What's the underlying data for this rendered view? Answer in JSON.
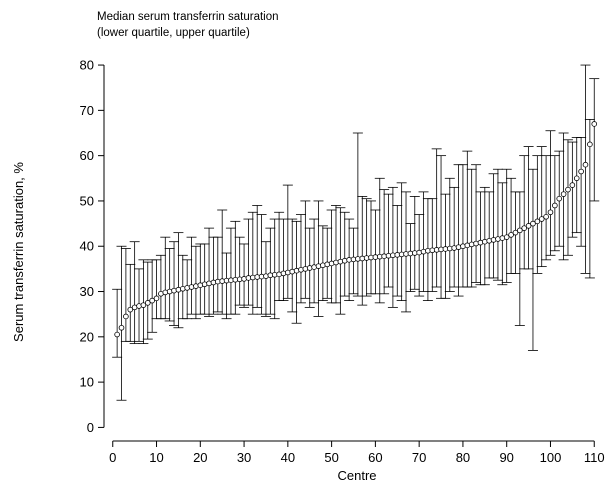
{
  "chart_data": {
    "type": "scatter",
    "subtitle_lines": [
      "Median serum transferrin saturation",
      "(lower quartile, upper quartile)"
    ],
    "xlabel": "Centre",
    "ylabel": "Serum transferrin saturation, %",
    "xlim": [
      -2,
      112
    ],
    "ylim": [
      -3,
      82
    ],
    "xticks": [
      0,
      10,
      20,
      30,
      40,
      50,
      60,
      70,
      80,
      90,
      100,
      110
    ],
    "yticks": [
      0,
      10,
      20,
      30,
      40,
      50,
      60,
      70,
      80
    ],
    "grid": false,
    "marker": "hollow-circle",
    "series": [
      {
        "x": [
          1,
          2,
          3,
          4,
          5,
          6,
          7,
          8,
          9,
          10,
          11,
          12,
          13,
          14,
          15,
          16,
          17,
          18,
          19,
          20,
          21,
          22,
          23,
          24,
          25,
          26,
          27,
          28,
          29,
          30,
          31,
          32,
          33,
          34,
          35,
          36,
          37,
          38,
          39,
          40,
          41,
          42,
          43,
          44,
          45,
          46,
          47,
          48,
          49,
          50,
          51,
          52,
          53,
          54,
          55,
          56,
          57,
          58,
          59,
          60,
          61,
          62,
          63,
          64,
          65,
          66,
          67,
          68,
          69,
          70,
          71,
          72,
          73,
          74,
          75,
          76,
          77,
          78,
          79,
          80,
          81,
          82,
          83,
          84,
          85,
          86,
          87,
          88,
          89,
          90,
          91,
          92,
          93,
          94,
          95,
          96,
          97,
          98,
          99,
          100,
          101,
          102,
          103,
          104,
          105,
          106,
          107,
          108,
          109,
          110
        ],
        "median": [
          20.5,
          22,
          24.5,
          26,
          26.5,
          26.8,
          27,
          27.5,
          28,
          28.5,
          29.5,
          29.8,
          30,
          30.2,
          30.4,
          30.6,
          30.8,
          31,
          31.2,
          31.4,
          31.6,
          31.8,
          32,
          32.2,
          32.3,
          32.4,
          32.5,
          32.6,
          32.7,
          32.8,
          33,
          33.1,
          33.2,
          33.3,
          33.4,
          33.6,
          33.7,
          33.8,
          34,
          34.2,
          34.4,
          34.6,
          34.8,
          35,
          35.2,
          35.4,
          35.6,
          35.8,
          36,
          36.2,
          36.4,
          36.6,
          36.8,
          37,
          37.1,
          37.2,
          37.3,
          37.4,
          37.5,
          37.6,
          37.7,
          37.8,
          37.9,
          38,
          38.1,
          38.2,
          38.3,
          38.4,
          38.5,
          38.6,
          38.8,
          39,
          39.1,
          39.2,
          39.3,
          39.4,
          39.5,
          39.6,
          39.8,
          40,
          40.2,
          40.4,
          40.6,
          40.8,
          41,
          41.2,
          41.4,
          41.6,
          41.8,
          42,
          42.5,
          43,
          43.5,
          44,
          44.5,
          45,
          45.5,
          46,
          46.5,
          47.5,
          49,
          50.5,
          51.5,
          52.5,
          53.5,
          55,
          56.5,
          58,
          62.5,
          67
        ],
        "lower_quartile": [
          15.5,
          6,
          19,
          19,
          18.5,
          19,
          18.5,
          19.5,
          21,
          24,
          24,
          24,
          23.5,
          22.5,
          22,
          24,
          24,
          25,
          24,
          25,
          25,
          24.5,
          25,
          25.5,
          25,
          24,
          25,
          25,
          27,
          26.5,
          27,
          25,
          26.5,
          25,
          24.5,
          25,
          24,
          28,
          28,
          28.5,
          25.5,
          23,
          27.5,
          28.5,
          26.5,
          27.5,
          24.5,
          28,
          28.5,
          27.5,
          27.5,
          25,
          29,
          28,
          29.5,
          29,
          27,
          29,
          29.5,
          29.5,
          27.5,
          29.5,
          31,
          26.5,
          29,
          28,
          25.5,
          30,
          30.5,
          29,
          30,
          28,
          30,
          31,
          28.5,
          28.5,
          30,
          31,
          29,
          31,
          31,
          31,
          32,
          31.5,
          31.5,
          33,
          33,
          32.5,
          31.5,
          32,
          34,
          34,
          22.5,
          35,
          35,
          17,
          34,
          35.5,
          37,
          38,
          39,
          40,
          37,
          38,
          42,
          43,
          40,
          34,
          33,
          50
        ],
        "upper_quartile": [
          30.5,
          40,
          39.5,
          36,
          41,
          35,
          37,
          36.5,
          37,
          37,
          38,
          42,
          39.5,
          41,
          43,
          38,
          37,
          42,
          40,
          40.5,
          40.5,
          44,
          42,
          42,
          48,
          38.5,
          44,
          45.5,
          42,
          40.5,
          46,
          47.5,
          49,
          47,
          41,
          44,
          46,
          47.5,
          46,
          53.5,
          46,
          45.5,
          47,
          50,
          44,
          46,
          50,
          44.5,
          44,
          48,
          49,
          48.5,
          47.5,
          46,
          44,
          65,
          51,
          50.5,
          50,
          48,
          55,
          52.5,
          51.5,
          53,
          49,
          54,
          52,
          45,
          51,
          47,
          52,
          50.5,
          50.5,
          61.5,
          60,
          51.5,
          55,
          53,
          58,
          58,
          61,
          57,
          58,
          52,
          53,
          52,
          56,
          57,
          54,
          57,
          55,
          52,
          52,
          60,
          62,
          57,
          60,
          62,
          60,
          65.5,
          60,
          61,
          65,
          63.5,
          63,
          64,
          64,
          80,
          68,
          77
        ]
      }
    ]
  }
}
